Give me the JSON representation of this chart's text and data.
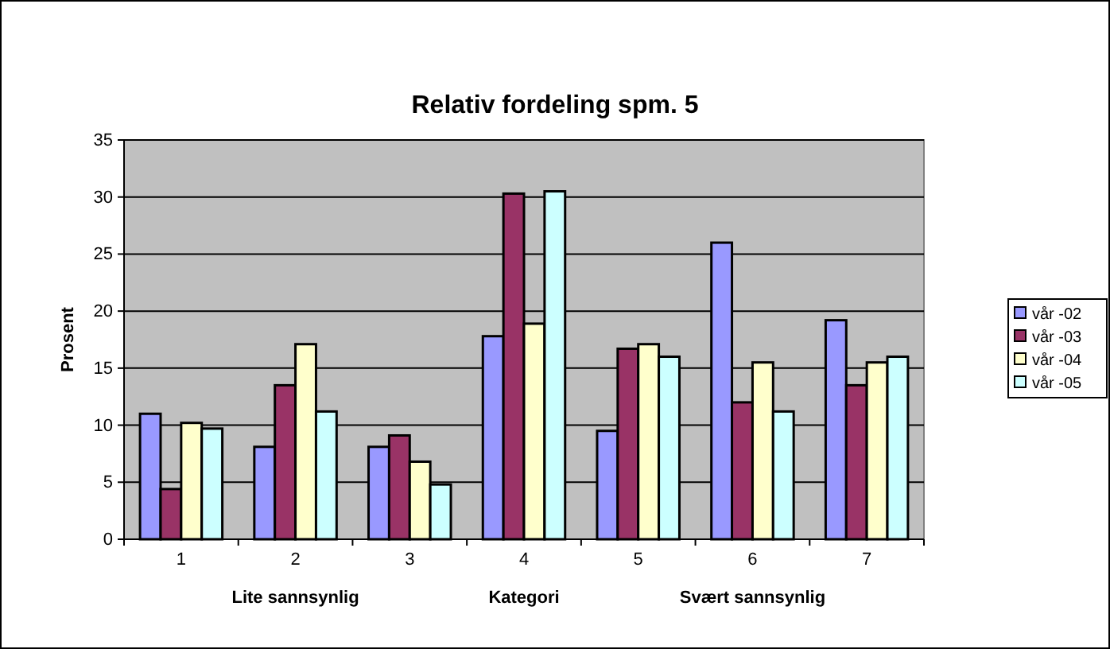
{
  "chart_data": {
    "type": "bar",
    "title": "Relativ fordeling spm. 5",
    "xlabel": "Kategori",
    "ylabel": "Prosent",
    "annotations": [
      "Lite sannsynlig",
      "Svært sannsynlig"
    ],
    "categories": [
      "1",
      "2",
      "3",
      "4",
      "5",
      "6",
      "7"
    ],
    "series": [
      {
        "name": "vår -02",
        "color": "#9999ff",
        "values": [
          11.0,
          8.1,
          8.1,
          17.8,
          9.5,
          26.0,
          19.2
        ]
      },
      {
        "name": "vår -03",
        "color": "#993366",
        "values": [
          4.4,
          13.5,
          9.1,
          30.3,
          16.7,
          12.0,
          13.5
        ]
      },
      {
        "name": "vår -04",
        "color": "#ffffcc",
        "values": [
          10.2,
          17.1,
          6.8,
          18.9,
          17.1,
          15.5,
          15.5
        ]
      },
      {
        "name": "vår -05",
        "color": "#ccffff",
        "values": [
          9.7,
          11.2,
          4.8,
          30.5,
          16.0,
          11.2,
          16.0
        ]
      }
    ],
    "ylim": [
      0,
      35
    ],
    "yticks": [
      0,
      5,
      10,
      15,
      20,
      25,
      30,
      35
    ],
    "grid": "y",
    "legend": "right"
  }
}
